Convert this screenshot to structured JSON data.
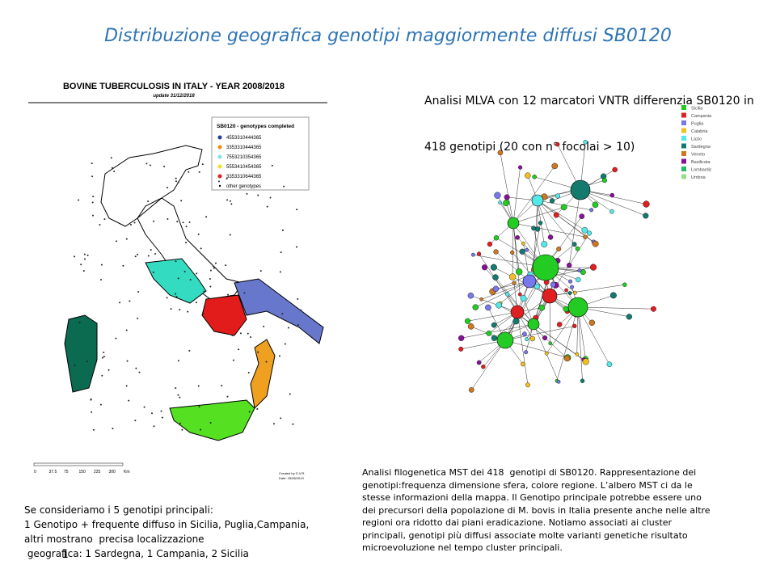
{
  "title": "Distribuzione geografica genotipi maggiormente diffusi SB0120",
  "map": {
    "title": "BOVINE TUBERCULOSIS IN ITALY - YEAR 2008/2018",
    "update": "update 31/12/2018",
    "legend_title": "SB0120 - genotypes completed",
    "legend_items": [
      "4553310444365",
      "3353310444365",
      "7553210354365",
      "5553410454365",
      "3353310644365",
      "other genotypes"
    ],
    "scale_labels": [
      "0",
      "37.5",
      "75",
      "150",
      "225",
      "300",
      "Km"
    ],
    "credit": [
      "Created by G.V.R.",
      "Date: 25/06/2019"
    ]
  },
  "tree": {
    "heading": [
      "Analisi MLVA con 12 marcatori VNTR differenzia SB0120 in",
      "418 genotipi (20 con n° focolai > 10)"
    ],
    "legend": [
      "Sicilia",
      "Campania",
      "Puglia",
      "Calabria",
      "Lazio",
      "Sardegna",
      "Veneto",
      "Basilicata",
      "Lombardia",
      "Umbria"
    ]
  },
  "left_text": [
    "Se consideriamo i 5 genotipi principali:",
    "1 Genotipo + frequente diffuso in Sicilia, Puglia,Campania,",
    "altri mostrano  precisa localizzazione",
    " geografica: 1 Sardegna, 1 Campania, 2 Sicilia"
  ],
  "right_text": [
    "Analisi filogenetica MST dei 418  genotipi di SB0120. Rappresentazione dei",
    "genotipi:frequenza dimensione sfera, colore regione. L’albero MST ci da le",
    "stesse informazioni della mappa. Il Genotipo principale potrebbe essere uno",
    "dei precursori della popolazione di M. bovis in Italia presente anche nelle altre",
    "regioni ora ridotto dai piani eradicazione. Notiamo associati ai cluster",
    "principali, genotipi più diffusi associate molte varianti genetiche risultato",
    "microevoluzione nel tempo cluster principali."
  ],
  "page_number": "1"
}
